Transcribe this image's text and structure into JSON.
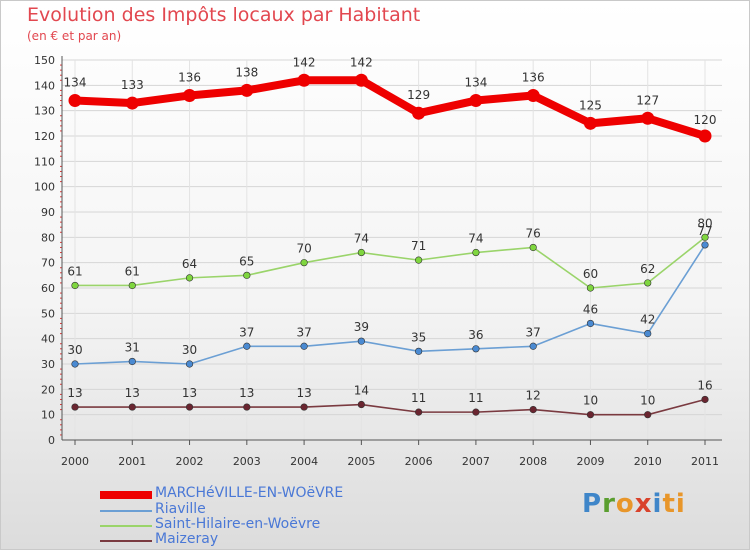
{
  "chart_data": {
    "type": "line",
    "title": "Evolution des Impôts locaux par Habitant",
    "subtitle": "(en € et par an)",
    "categories": [
      "2000",
      "2001",
      "2002",
      "2003",
      "2004",
      "2005",
      "2006",
      "2007",
      "2008",
      "2009",
      "2010",
      "2011"
    ],
    "ylim": [
      0,
      150
    ],
    "yticks": [
      0,
      10,
      20,
      30,
      40,
      50,
      60,
      70,
      80,
      90,
      100,
      110,
      120,
      130,
      140,
      150
    ],
    "series": [
      {
        "name": "MARCHéVILLE-EN-WOëVRE",
        "values": [
          134,
          133,
          136,
          138,
          142,
          142,
          129,
          134,
          136,
          125,
          127,
          120
        ],
        "color": "#ee0000",
        "marker": "#ee0000",
        "width": 8
      },
      {
        "name": "Riaville",
        "values": [
          30,
          31,
          30,
          37,
          37,
          39,
          35,
          36,
          37,
          46,
          42,
          77
        ],
        "color": "#6b9fd4",
        "marker": "#4a8ad2",
        "width": 1.6
      },
      {
        "name": "Saint-Hilaire-en-Woëvre",
        "values": [
          61,
          61,
          64,
          65,
          70,
          74,
          71,
          74,
          76,
          60,
          62,
          80
        ],
        "color": "#9ad46a",
        "marker": "#7fd63f",
        "width": 1.6
      },
      {
        "name": "Maizeray",
        "values": [
          13,
          13,
          13,
          13,
          13,
          14,
          11,
          11,
          12,
          10,
          10,
          16
        ],
        "color": "#7a3a40",
        "marker": "#6a2530",
        "width": 1.6
      }
    ],
    "legend_position": "bottom-left"
  },
  "logo": {
    "parts": [
      "P",
      "r",
      "o",
      "x",
      "i",
      "ti"
    ]
  }
}
